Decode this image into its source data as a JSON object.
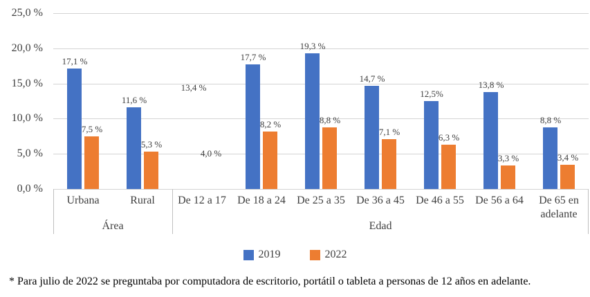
{
  "chart_data": {
    "type": "bar",
    "ylim": [
      0,
      25
    ],
    "yticks": [
      0,
      5,
      10,
      15,
      20,
      25
    ],
    "ytick_labels": [
      "0,0 %",
      "5,0 %",
      "10,0 %",
      "15,0 %",
      "20,0 %",
      "25,0 %"
    ],
    "grid": true,
    "legend_position": "bottom",
    "groups": [
      {
        "label": "Área",
        "categories": [
          "Urbana",
          "Rural"
        ]
      },
      {
        "label": "Edad",
        "categories": [
          "De 12 a 17",
          "De 18 a 24",
          "De 25 a 35",
          "De 36 a 45",
          "De 46 a 55",
          "De 56 a 64",
          "De 65 en adelante"
        ]
      }
    ],
    "series": [
      {
        "name": "2019",
        "color": "#4472C4",
        "values": [
          17.1,
          11.6,
          13.4,
          17.7,
          19.3,
          14.7,
          12.5,
          13.8,
          8.8
        ],
        "labels": [
          "17,1 %",
          "11,6 %",
          "13,4 %",
          "17,7 %",
          "19,3 %",
          "14,7 %",
          "12,5%",
          "13,8 %",
          "8,8 %"
        ]
      },
      {
        "name": "2022",
        "color": "#ED7D31",
        "values": [
          7.5,
          5.3,
          4.0,
          8.2,
          8.8,
          7.1,
          6.3,
          3.3,
          3.4
        ],
        "labels": [
          "7,5 %",
          "5,3 %",
          "4,0 %",
          "8,2 %",
          "8,8 %",
          "7,1 %",
          "6,3 %",
          "3,3 %",
          "3,4 %"
        ]
      }
    ],
    "hidden_bar_categories": [
      "De 12 a 17"
    ]
  },
  "legend": {
    "items": [
      {
        "label": "2019",
        "color": "#4472C4"
      },
      {
        "label": "2022",
        "color": "#ED7D31"
      }
    ]
  },
  "footnote": "* Para julio de 2022 se preguntaba por computadora de escritorio, portátil o tableta a personas de 12 años en adelante."
}
